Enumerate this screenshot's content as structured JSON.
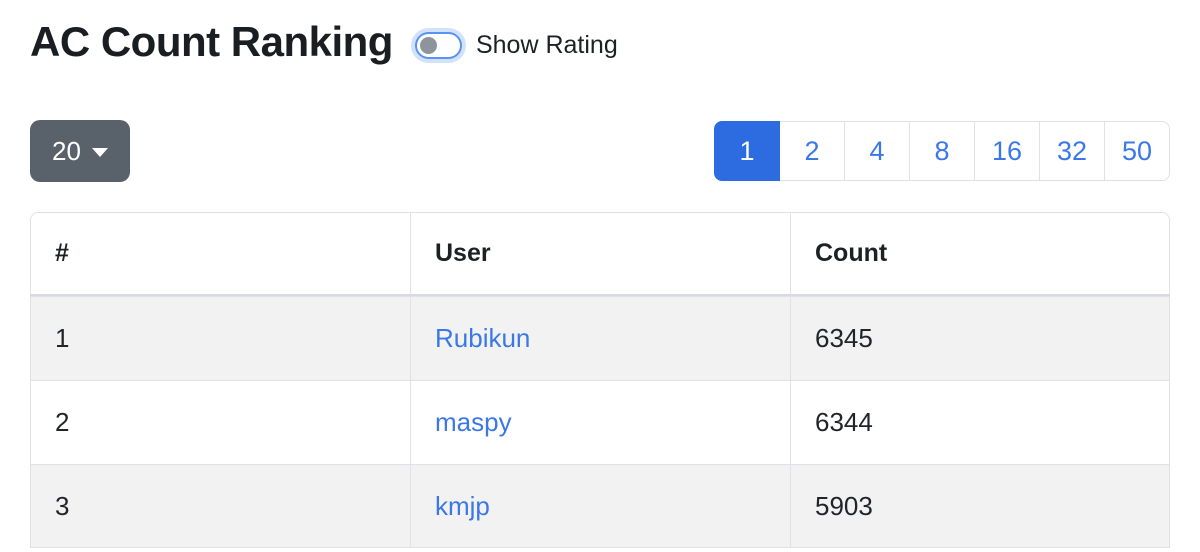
{
  "page": {
    "title": "AC Count Ranking"
  },
  "rating_toggle": {
    "label": "Show Rating",
    "state": "off"
  },
  "page_size_dropdown": {
    "value": "20"
  },
  "pagination": {
    "items": [
      "1",
      "2",
      "4",
      "8",
      "16",
      "32",
      "50"
    ],
    "active": "1"
  },
  "table": {
    "columns": {
      "rank": "#",
      "user": "User",
      "count": "Count"
    },
    "rows": [
      {
        "rank": "1",
        "user": "Rubikun",
        "count": "6345"
      },
      {
        "rank": "2",
        "user": "maspy",
        "count": "6344"
      },
      {
        "rank": "3",
        "user": "kmjp",
        "count": "5903"
      }
    ]
  },
  "colors": {
    "accent_blue": "#2d6ce0",
    "link_blue": "#3b78e7",
    "dropdown_gray": "#59626b",
    "stripe_gray": "#f2f2f3",
    "border_gray": "#dee2e6"
  }
}
